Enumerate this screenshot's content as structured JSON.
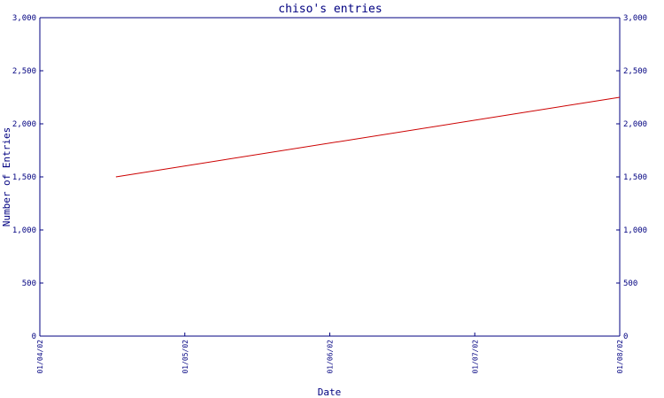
{
  "chart_data": {
    "type": "line",
    "title": "chiso's entries",
    "xlabel": "Date",
    "ylabel": "Number of Entries",
    "x_ticks": [
      "01/04/02",
      "01/05/02",
      "01/06/02",
      "01/07/02",
      "01/08/02"
    ],
    "y_ticks": [
      "0",
      "500",
      "1,000",
      "1,500",
      "2,000",
      "2,500",
      "3,000"
    ],
    "y_ticks_right": [
      "0",
      "500",
      "1,000",
      "1,500",
      "2,000",
      "2,500",
      "3,000"
    ],
    "ylim": [
      0,
      3000
    ],
    "xlim": [
      "2002-04-01",
      "2002-08-01"
    ],
    "grid": false,
    "series": [
      {
        "points": [
          {
            "x": "2002-04-17",
            "y": 1500
          },
          {
            "x": "2002-08-01",
            "y": 2250
          }
        ],
        "color": "#cc0000"
      }
    ],
    "colors": {
      "axis": "#000080",
      "text": "#000080",
      "line": "#cc0000",
      "background": "#ffffff"
    }
  }
}
